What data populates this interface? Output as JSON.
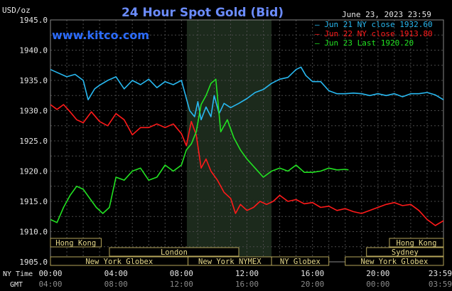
{
  "chart_data": {
    "type": "line",
    "title": "24 Hour Spot Gold (Bid)",
    "date": "June 23, 2023 23:59",
    "watermark": "www.kitco.com",
    "ylabel": "USD/oz",
    "ylim": [
      1905,
      1945
    ],
    "yticks": [
      "1945.0",
      "1940.0",
      "1935.0",
      "1930.0",
      "1925.0",
      "1920.0",
      "1915.0",
      "1910.0",
      "1905.0"
    ],
    "xlim": [
      0,
      24
    ],
    "xticks_ny": [
      "00:00",
      "04:00",
      "08:00",
      "12:00",
      "16:00",
      "20:00",
      "23:59"
    ],
    "xticks_gmt": [
      "04:00",
      "08:00",
      "12:00",
      "16:00",
      "20:00",
      "00:00",
      "03:59"
    ],
    "xaxis_row_labels": [
      "NY Time",
      "GMT"
    ],
    "highlight_hours": [
      8.33,
      13.5
    ],
    "grid": true,
    "legend_position": "top-right",
    "colors": {
      "background": "#000000",
      "grid": "#4a4a4a",
      "axis_text": "#e6e6e6",
      "title": "#6b8cff",
      "highlight": "#1c2a1c",
      "session_fill": "#000000",
      "session_border": "#b5a55a",
      "session_text": "#e6d98a"
    },
    "series": [
      {
        "name": "Jun 21 NY close 1932.60",
        "color": "#28b8f0",
        "x": [
          0,
          0.5,
          1,
          1.5,
          2,
          2.3,
          2.7,
          3,
          3.5,
          4,
          4.5,
          5,
          5.5,
          6,
          6.5,
          7,
          7.5,
          8,
          8.5,
          8.8,
          9,
          9.2,
          9.5,
          9.8,
          10,
          10.3,
          10.6,
          11,
          11.5,
          12,
          12.5,
          13,
          13.5,
          14,
          14.5,
          15,
          15.3,
          15.6,
          16,
          16.5,
          17,
          17.5,
          18,
          18.5,
          19,
          19.5,
          20,
          20.5,
          21,
          21.5,
          22,
          22.5,
          23,
          23.5,
          24
        ],
        "y": [
          1936.8,
          1936.2,
          1935.6,
          1936.0,
          1935.0,
          1931.8,
          1933.6,
          1934.2,
          1935.0,
          1935.6,
          1933.6,
          1935.0,
          1934.3,
          1935.2,
          1933.8,
          1934.8,
          1934.3,
          1935.0,
          1930.0,
          1929.0,
          1931.5,
          1928.5,
          1930.6,
          1929.0,
          1932.5,
          1929.5,
          1931.2,
          1930.5,
          1931.2,
          1932.0,
          1933.0,
          1933.5,
          1934.5,
          1935.2,
          1935.5,
          1936.8,
          1937.2,
          1935.8,
          1934.8,
          1934.8,
          1933.3,
          1932.8,
          1932.8,
          1932.9,
          1932.8,
          1932.5,
          1932.8,
          1932.5,
          1932.8,
          1932.3,
          1932.8,
          1932.8,
          1933.0,
          1932.6,
          1931.8
        ]
      },
      {
        "name": "Jun 22 NY close 1913.80",
        "color": "#ff1a1a",
        "x": [
          0,
          0.4,
          0.8,
          1.2,
          1.6,
          2,
          2.5,
          3,
          3.5,
          4,
          4.5,
          5,
          5.5,
          6,
          6.5,
          7,
          7.5,
          8,
          8.3,
          8.6,
          8.9,
          9.2,
          9.5,
          9.8,
          10.2,
          10.6,
          11,
          11.3,
          11.6,
          12,
          12.4,
          12.8,
          13.2,
          13.6,
          14,
          14.5,
          15,
          15.5,
          16,
          16.5,
          17,
          17.5,
          18,
          18.5,
          19,
          19.5,
          20,
          20.5,
          21,
          21.5,
          22,
          22.5,
          23,
          23.5,
          24
        ],
        "y": [
          1931.0,
          1930.2,
          1931.0,
          1929.8,
          1928.5,
          1928.0,
          1929.8,
          1928.2,
          1927.5,
          1929.5,
          1928.5,
          1926.0,
          1927.2,
          1927.2,
          1927.8,
          1927.2,
          1927.8,
          1926.2,
          1924.2,
          1928.2,
          1926.0,
          1920.5,
          1922.0,
          1920.0,
          1918.5,
          1916.5,
          1915.5,
          1913.0,
          1914.5,
          1913.5,
          1914.0,
          1915.0,
          1914.5,
          1915.0,
          1916.0,
          1915.0,
          1915.3,
          1914.6,
          1914.8,
          1914.0,
          1914.2,
          1913.5,
          1913.8,
          1913.3,
          1913.0,
          1913.5,
          1914.0,
          1914.5,
          1914.8,
          1914.3,
          1914.5,
          1913.5,
          1912.0,
          1911.0,
          1911.8
        ]
      },
      {
        "name": "Jun 23 Last 1920.20",
        "color": "#22e222",
        "x": [
          0,
          0.4,
          0.8,
          1.2,
          1.6,
          2,
          2.4,
          2.8,
          3.2,
          3.6,
          4,
          4.5,
          5,
          5.5,
          6,
          6.5,
          7,
          7.5,
          8,
          8.3,
          8.6,
          8.9,
          9.2,
          9.5,
          9.8,
          10.1,
          10.4,
          10.8,
          11.2,
          11.6,
          12,
          12.5,
          13,
          13.5,
          14,
          14.5,
          15,
          15.5,
          16,
          16.5,
          17,
          17.5,
          18,
          18.2
        ],
        "y": [
          1912.0,
          1911.5,
          1914.0,
          1916.0,
          1917.5,
          1917.0,
          1915.5,
          1914.0,
          1913.0,
          1914.0,
          1919.0,
          1918.5,
          1920.0,
          1920.5,
          1918.5,
          1919.0,
          1921.0,
          1920.0,
          1921.0,
          1923.5,
          1924.5,
          1926.5,
          1931.0,
          1932.5,
          1934.5,
          1935.2,
          1926.5,
          1928.5,
          1925.5,
          1923.5,
          1922.0,
          1920.5,
          1919.0,
          1920.0,
          1920.5,
          1920.0,
          1921.0,
          1919.8,
          1919.8,
          1920.0,
          1920.5,
          1920.2,
          1920.3,
          1920.2
        ]
      }
    ],
    "sessions": [
      {
        "label": "Hong Kong",
        "row": 0,
        "start": 0,
        "end": 3.1
      },
      {
        "label": "London",
        "row": 1,
        "start": 3.6,
        "end": 11.5
      },
      {
        "label": "New York Globex",
        "row": 2,
        "start": 0,
        "end": 8.4
      },
      {
        "label": "New York NYMEX",
        "row": 2,
        "start": 8.4,
        "end": 13.5
      },
      {
        "label": "NY Globex",
        "row": 2,
        "start": 13.5,
        "end": 17.0
      },
      {
        "label": "Hong Kong",
        "row": 0,
        "start": 20.7,
        "end": 24
      },
      {
        "label": "Sydney",
        "row": 1,
        "start": 19.3,
        "end": 24
      },
      {
        "label": "New York Globex",
        "row": 2,
        "start": 18.0,
        "end": 24
      }
    ]
  }
}
